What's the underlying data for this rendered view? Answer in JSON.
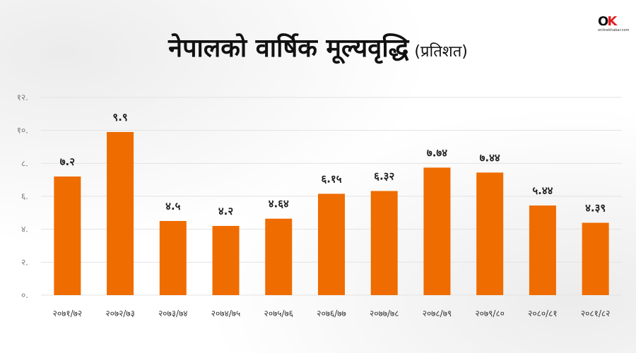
{
  "title": "नेपालको वार्षिक मूल्यवृद्धि",
  "subtitle": "(प्रतिशत)",
  "logo": {
    "mark_o": "O",
    "mark_k": "K",
    "text": "onlinekhabar.com"
  },
  "colors": {
    "bar": "#ef6c00",
    "grid": "#e3e3e3"
  },
  "chart_data": {
    "type": "bar",
    "categories": [
      "२०७१/७२",
      "२०७२/७३",
      "२०७३/७४",
      "२०७४/७५",
      "२०७५/७६",
      "२०७६/७७",
      "२०७७/७८",
      "२०७८/७९",
      "२०७९/८०",
      "२०८०/८१",
      "२०८१/८२"
    ],
    "values": [
      7.2,
      9.9,
      4.5,
      4.2,
      4.64,
      6.15,
      6.32,
      7.74,
      7.44,
      5.44,
      4.39
    ],
    "data_labels": [
      "७.२",
      "९.९",
      "४.५",
      "४.२",
      "४.६४",
      "६.१५",
      "६.३२",
      "७.७४",
      "७.४४",
      "५.४४",
      "४.३९"
    ],
    "ylim": [
      0,
      12
    ],
    "yticks": [
      0,
      2,
      4,
      6,
      8,
      10,
      12
    ],
    "ytick_labels": [
      "०.",
      "२.",
      "४.",
      "६.",
      "८.",
      "१०.",
      "१२."
    ],
    "grid": true,
    "legend": false
  }
}
